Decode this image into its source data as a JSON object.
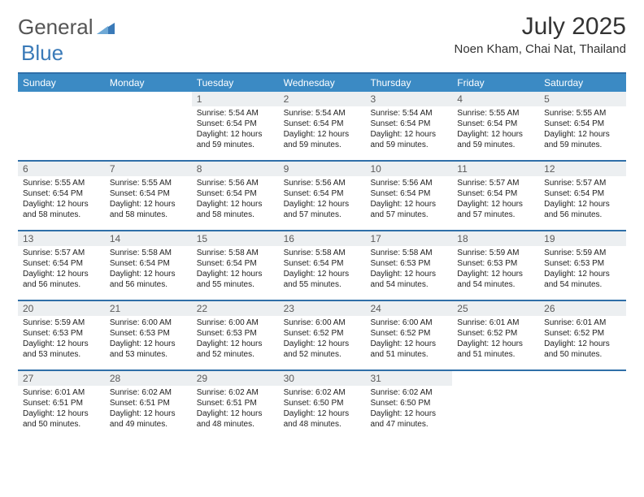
{
  "logo": {
    "general": "General",
    "blue": "Blue"
  },
  "header": {
    "month_title": "July 2025",
    "location": "Noen Kham, Chai Nat, Thailand"
  },
  "colors": {
    "header_bg": "#3b8ac4",
    "week_border": "#2f6fa8",
    "daynum_bg": "#eceff1",
    "logo_gray": "#555555",
    "logo_blue": "#3a7ab8"
  },
  "weekdays": [
    "Sunday",
    "Monday",
    "Tuesday",
    "Wednesday",
    "Thursday",
    "Friday",
    "Saturday"
  ],
  "weeks": [
    [
      {
        "empty": true
      },
      {
        "empty": true
      },
      {
        "n": "1",
        "sr": "Sunrise: 5:54 AM",
        "ss": "Sunset: 6:54 PM",
        "dl": "Daylight: 12 hours and 59 minutes."
      },
      {
        "n": "2",
        "sr": "Sunrise: 5:54 AM",
        "ss": "Sunset: 6:54 PM",
        "dl": "Daylight: 12 hours and 59 minutes."
      },
      {
        "n": "3",
        "sr": "Sunrise: 5:54 AM",
        "ss": "Sunset: 6:54 PM",
        "dl": "Daylight: 12 hours and 59 minutes."
      },
      {
        "n": "4",
        "sr": "Sunrise: 5:55 AM",
        "ss": "Sunset: 6:54 PM",
        "dl": "Daylight: 12 hours and 59 minutes."
      },
      {
        "n": "5",
        "sr": "Sunrise: 5:55 AM",
        "ss": "Sunset: 6:54 PM",
        "dl": "Daylight: 12 hours and 59 minutes."
      }
    ],
    [
      {
        "n": "6",
        "sr": "Sunrise: 5:55 AM",
        "ss": "Sunset: 6:54 PM",
        "dl": "Daylight: 12 hours and 58 minutes."
      },
      {
        "n": "7",
        "sr": "Sunrise: 5:55 AM",
        "ss": "Sunset: 6:54 PM",
        "dl": "Daylight: 12 hours and 58 minutes."
      },
      {
        "n": "8",
        "sr": "Sunrise: 5:56 AM",
        "ss": "Sunset: 6:54 PM",
        "dl": "Daylight: 12 hours and 58 minutes."
      },
      {
        "n": "9",
        "sr": "Sunrise: 5:56 AM",
        "ss": "Sunset: 6:54 PM",
        "dl": "Daylight: 12 hours and 57 minutes."
      },
      {
        "n": "10",
        "sr": "Sunrise: 5:56 AM",
        "ss": "Sunset: 6:54 PM",
        "dl": "Daylight: 12 hours and 57 minutes."
      },
      {
        "n": "11",
        "sr": "Sunrise: 5:57 AM",
        "ss": "Sunset: 6:54 PM",
        "dl": "Daylight: 12 hours and 57 minutes."
      },
      {
        "n": "12",
        "sr": "Sunrise: 5:57 AM",
        "ss": "Sunset: 6:54 PM",
        "dl": "Daylight: 12 hours and 56 minutes."
      }
    ],
    [
      {
        "n": "13",
        "sr": "Sunrise: 5:57 AM",
        "ss": "Sunset: 6:54 PM",
        "dl": "Daylight: 12 hours and 56 minutes."
      },
      {
        "n": "14",
        "sr": "Sunrise: 5:58 AM",
        "ss": "Sunset: 6:54 PM",
        "dl": "Daylight: 12 hours and 56 minutes."
      },
      {
        "n": "15",
        "sr": "Sunrise: 5:58 AM",
        "ss": "Sunset: 6:54 PM",
        "dl": "Daylight: 12 hours and 55 minutes."
      },
      {
        "n": "16",
        "sr": "Sunrise: 5:58 AM",
        "ss": "Sunset: 6:54 PM",
        "dl": "Daylight: 12 hours and 55 minutes."
      },
      {
        "n": "17",
        "sr": "Sunrise: 5:58 AM",
        "ss": "Sunset: 6:53 PM",
        "dl": "Daylight: 12 hours and 54 minutes."
      },
      {
        "n": "18",
        "sr": "Sunrise: 5:59 AM",
        "ss": "Sunset: 6:53 PM",
        "dl": "Daylight: 12 hours and 54 minutes."
      },
      {
        "n": "19",
        "sr": "Sunrise: 5:59 AM",
        "ss": "Sunset: 6:53 PM",
        "dl": "Daylight: 12 hours and 54 minutes."
      }
    ],
    [
      {
        "n": "20",
        "sr": "Sunrise: 5:59 AM",
        "ss": "Sunset: 6:53 PM",
        "dl": "Daylight: 12 hours and 53 minutes."
      },
      {
        "n": "21",
        "sr": "Sunrise: 6:00 AM",
        "ss": "Sunset: 6:53 PM",
        "dl": "Daylight: 12 hours and 53 minutes."
      },
      {
        "n": "22",
        "sr": "Sunrise: 6:00 AM",
        "ss": "Sunset: 6:53 PM",
        "dl": "Daylight: 12 hours and 52 minutes."
      },
      {
        "n": "23",
        "sr": "Sunrise: 6:00 AM",
        "ss": "Sunset: 6:52 PM",
        "dl": "Daylight: 12 hours and 52 minutes."
      },
      {
        "n": "24",
        "sr": "Sunrise: 6:00 AM",
        "ss": "Sunset: 6:52 PM",
        "dl": "Daylight: 12 hours and 51 minutes."
      },
      {
        "n": "25",
        "sr": "Sunrise: 6:01 AM",
        "ss": "Sunset: 6:52 PM",
        "dl": "Daylight: 12 hours and 51 minutes."
      },
      {
        "n": "26",
        "sr": "Sunrise: 6:01 AM",
        "ss": "Sunset: 6:52 PM",
        "dl": "Daylight: 12 hours and 50 minutes."
      }
    ],
    [
      {
        "n": "27",
        "sr": "Sunrise: 6:01 AM",
        "ss": "Sunset: 6:51 PM",
        "dl": "Daylight: 12 hours and 50 minutes."
      },
      {
        "n": "28",
        "sr": "Sunrise: 6:02 AM",
        "ss": "Sunset: 6:51 PM",
        "dl": "Daylight: 12 hours and 49 minutes."
      },
      {
        "n": "29",
        "sr": "Sunrise: 6:02 AM",
        "ss": "Sunset: 6:51 PM",
        "dl": "Daylight: 12 hours and 48 minutes."
      },
      {
        "n": "30",
        "sr": "Sunrise: 6:02 AM",
        "ss": "Sunset: 6:50 PM",
        "dl": "Daylight: 12 hours and 48 minutes."
      },
      {
        "n": "31",
        "sr": "Sunrise: 6:02 AM",
        "ss": "Sunset: 6:50 PM",
        "dl": "Daylight: 12 hours and 47 minutes."
      },
      {
        "empty": true
      },
      {
        "empty": true
      }
    ]
  ]
}
